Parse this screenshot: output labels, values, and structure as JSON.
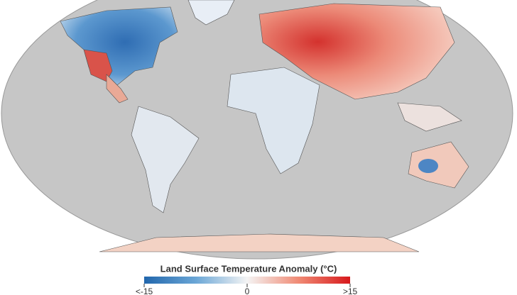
{
  "legend": {
    "title": "Land Surface Temperature Anomaly (°C)",
    "range": [
      -15,
      15
    ],
    "colors": [
      "#2166ac",
      "#6aa6d6",
      "#f4f4f4",
      "#f08a74",
      "#d7191c"
    ],
    "ticks": [
      {
        "value": -15,
        "label": "<-15"
      },
      0,
      {
        "value": 15,
        "label": ">15"
      }
    ]
  }
}
